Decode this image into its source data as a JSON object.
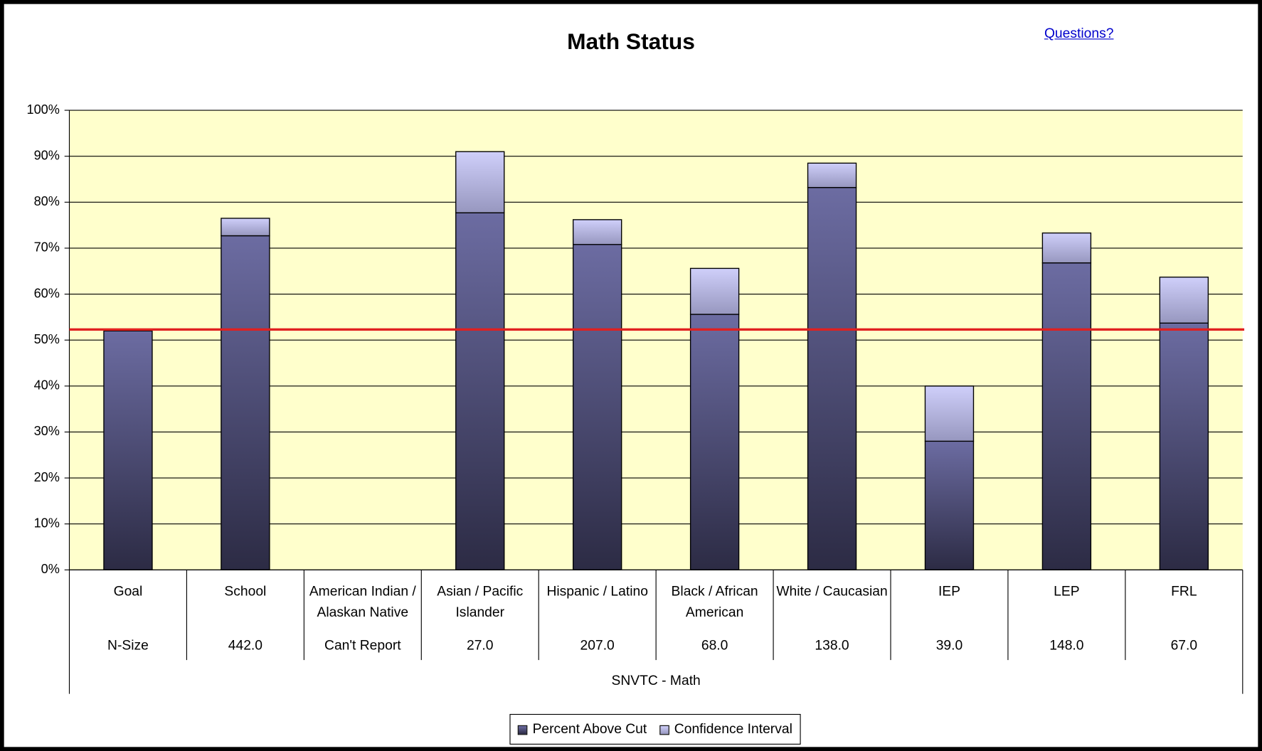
{
  "chart_data": {
    "type": "stacked_bar",
    "title": "Math Status",
    "link": "Questions?",
    "categories": [
      "Goal",
      "School",
      "American Indian / Alaskan Native",
      "Asian / Pacific Islander",
      "Hispanic / Latino",
      "Black / African American",
      "White / Caucasian",
      "IEP",
      "LEP",
      "FRL"
    ],
    "n_sizes": [
      "N-Size",
      "442.0",
      "Can't Report",
      "27.0",
      "207.0",
      "68.0",
      "138.0",
      "39.0",
      "148.0",
      "67.0"
    ],
    "x_label": "SNVTC - Math",
    "series": [
      {
        "name": "Percent Above Cut",
        "color": [
          "#6c6ca2",
          "#2c2b44"
        ],
        "values": [
          52,
          72.7,
          null,
          77.7,
          70.8,
          55.6,
          83.2,
          28,
          66.8,
          53.7
        ]
      },
      {
        "name": "Confidence Interval",
        "color": [
          "#cfcffa",
          "#9797bf"
        ],
        "values": [
          null,
          3.8,
          null,
          13.3,
          5.4,
          10,
          5.3,
          12,
          6.5,
          10
        ]
      }
    ],
    "goal_line": {
      "value": 52.3,
      "color": "#e02020"
    },
    "ylim": [
      0,
      100
    ],
    "yticks": [
      {
        "value": 0,
        "label": "0%"
      },
      {
        "value": 10,
        "label": "10%"
      },
      {
        "value": 20,
        "label": "20%"
      },
      {
        "value": 30,
        "label": "30%"
      },
      {
        "value": 40,
        "label": "40%"
      },
      {
        "value": 50,
        "label": "50%"
      },
      {
        "value": 60,
        "label": "60%"
      },
      {
        "value": 70,
        "label": "70%"
      },
      {
        "value": 80,
        "label": "80%"
      },
      {
        "value": 90,
        "label": "90%"
      },
      {
        "value": 100,
        "label": "100%"
      }
    ],
    "grid": true,
    "plot_background": "#ffffcc",
    "legend": "bottom"
  }
}
